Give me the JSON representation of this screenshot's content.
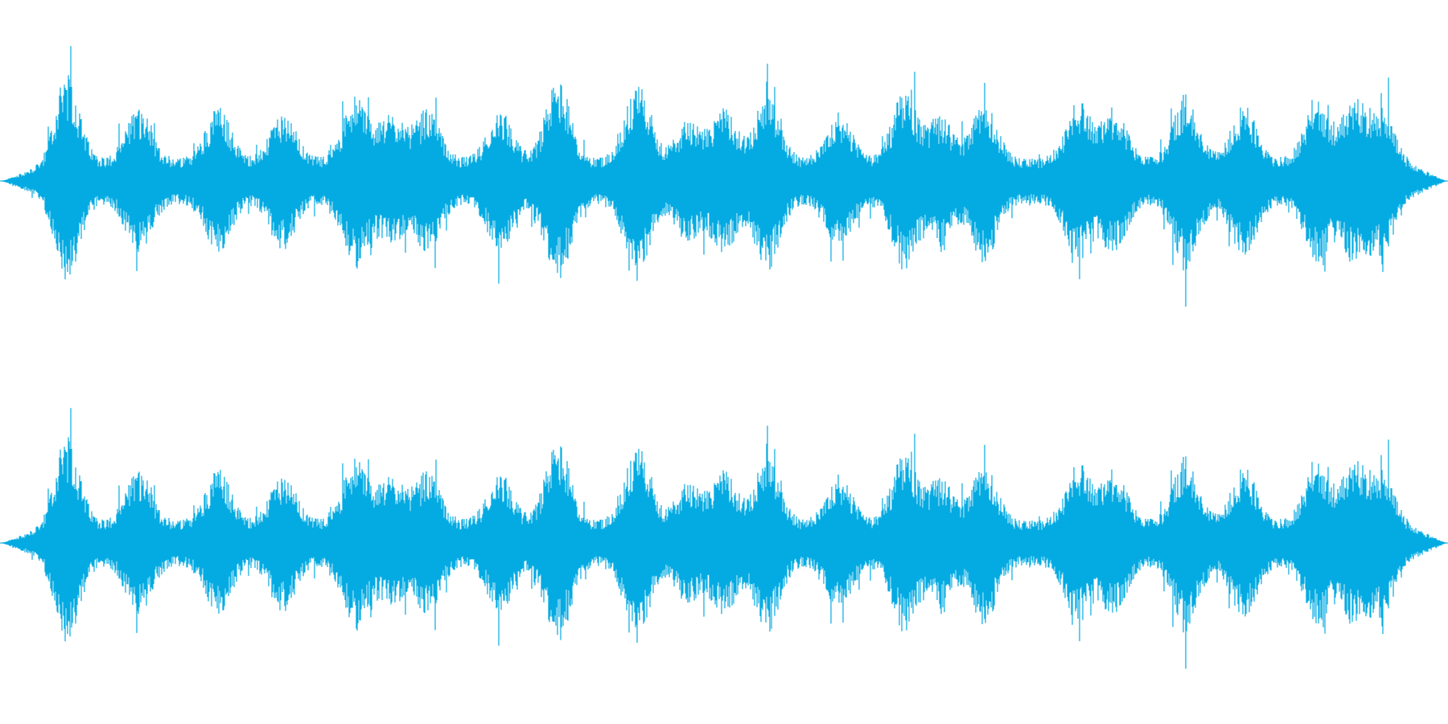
{
  "waveform": {
    "color": "#04ABE2",
    "background": "#ffffff",
    "channel_count": 2,
    "channels": [
      {
        "name": "channel-left"
      },
      {
        "name": "channel-right"
      }
    ],
    "envelope": {
      "base_level": 0.15,
      "peak_times": [
        0.045,
        0.095,
        0.15,
        0.195,
        0.245,
        0.27,
        0.295,
        0.345,
        0.385,
        0.44,
        0.475,
        0.5,
        0.53,
        0.58,
        0.625,
        0.65,
        0.68,
        0.745,
        0.77,
        0.82,
        0.86,
        0.91,
        0.935,
        0.955
      ],
      "peak_levels": [
        1.0,
        0.62,
        0.62,
        0.55,
        0.75,
        0.52,
        0.58,
        0.58,
        0.93,
        0.88,
        0.45,
        0.6,
        0.8,
        0.55,
        0.8,
        0.5,
        0.7,
        0.68,
        0.6,
        0.78,
        0.65,
        0.7,
        0.68,
        0.6
      ],
      "left_edge_fade": 0.004,
      "right_edge_fade": 0.016
    }
  }
}
